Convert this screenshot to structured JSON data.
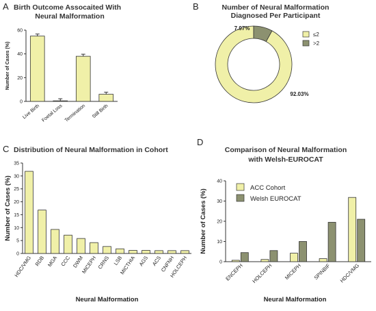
{
  "colors": {
    "yellow": "#f0f0a8",
    "olive": "#8c9170",
    "axis": "#333333"
  },
  "panels": {
    "A": {
      "letter": "A",
      "title_lines": [
        "Birth Outcome Assocaited With",
        "Neural Malformation"
      ]
    },
    "B": {
      "letter": "B",
      "title_lines": [
        "Number of Neural Malformation",
        "Diagnosed Per Participant"
      ]
    },
    "C": {
      "letter": "C",
      "title_lines": [
        "Distribution of Neural Malformation in Cohort"
      ]
    },
    "D": {
      "letter": "D",
      "title_lines": [
        "Comparison of Neural Malformation",
        "with Welsh-EUROCAT"
      ]
    }
  },
  "chart_data": [
    {
      "id": "A",
      "type": "bar",
      "title": "Birth Outcome Assocaited With Neural Malformation",
      "categories": [
        "Live Birth",
        "Foetal Loss",
        "Termination",
        "Still Birth"
      ],
      "values": [
        55,
        0.5,
        38,
        6
      ],
      "ylabel": "Number of Cases (%)",
      "xlabel": "",
      "ylim": [
        0,
        60
      ],
      "yticks": [
        "0",
        "20",
        "40",
        "60"
      ],
      "error_bars": true
    },
    {
      "id": "B",
      "type": "pie",
      "donut": true,
      "title": "Number of Neural Malformation Diagnosed Per Participant",
      "slices": [
        {
          "label": "≤2",
          "value": 92.03,
          "display": "92.03%"
        },
        {
          "label": ">2",
          "value": 7.97,
          "display": "7.97%"
        }
      ],
      "legend": "top-right"
    },
    {
      "id": "C",
      "type": "bar",
      "title": "Distribution of Neural Malformation in Cohort",
      "categories": [
        "HDC/VMG",
        "RDB",
        "MGA",
        "CCC",
        "DWM",
        "MICEPH",
        "CRNS",
        "LSB",
        "MICTHIA",
        "AGS",
        "ACS",
        "CNFNH",
        "HOLCEPH"
      ],
      "values": [
        31.8,
        16.8,
        9.3,
        7.1,
        5.8,
        4.2,
        2.7,
        1.8,
        1.2,
        1.2,
        1.1,
        1.1,
        1.1
      ],
      "ylabel": "Number of Cases (%)",
      "xlabel": "Neural Malformation",
      "ylim": [
        0,
        35
      ],
      "yticks": [
        "0",
        "5",
        "10",
        "15",
        "20",
        "25",
        "30",
        "35"
      ]
    },
    {
      "id": "D",
      "type": "bar",
      "title": "Comparison of Neural Malformation with Welsh-EUROCAT",
      "categories": [
        "ENCEPH",
        "HOLCEPH",
        "MICEPH",
        "SPINBIF",
        "HDC/VMG"
      ],
      "series": [
        {
          "name": "ACC Cohort",
          "values": [
            0.7,
            1.1,
            4.2,
            1.5,
            31.8
          ]
        },
        {
          "name": "Welsh EUROCAT",
          "values": [
            4.5,
            5.5,
            10.0,
            19.5,
            21.0
          ]
        }
      ],
      "ylabel": "Number of Cases (%)",
      "xlabel": "Neural Malformation",
      "ylim": [
        0,
        40
      ],
      "yticks": [
        "0",
        "10",
        "20",
        "30",
        "40"
      ],
      "legend": "top-left"
    }
  ]
}
